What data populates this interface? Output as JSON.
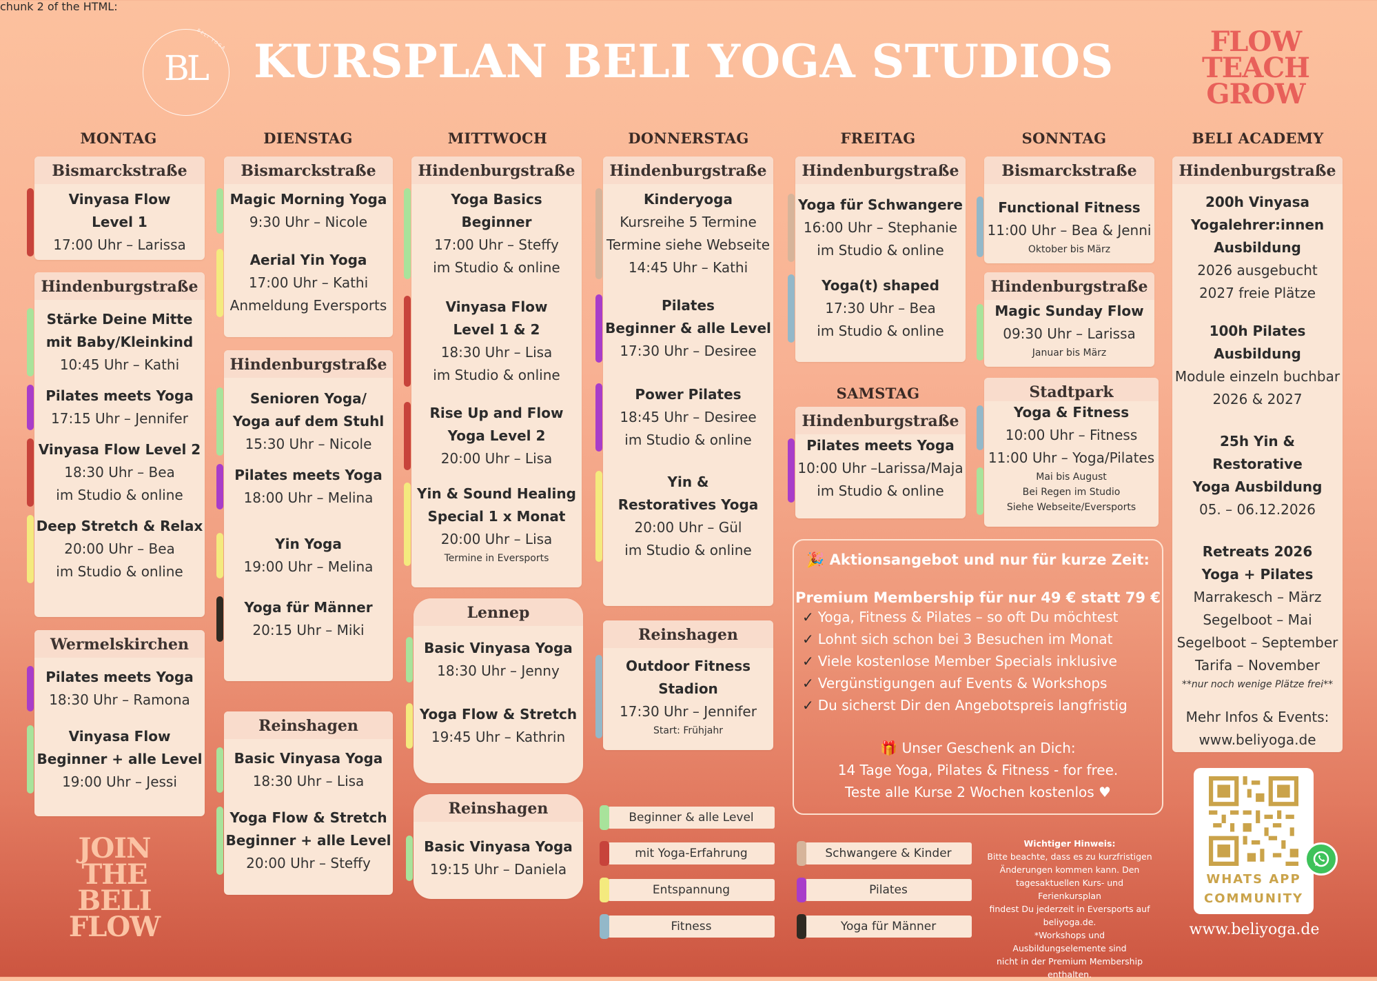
{
  "header": {
    "logo_text": "BL",
    "logo_ring_text": "BELI YOGA",
    "title": "KURSPLAN BELI YOGA STUDIOS",
    "slogan": [
      "FLOW",
      "TEACH",
      "GROW"
    ]
  },
  "days": {
    "montag": "MONTAG",
    "dienstag": "DIENSTAG",
    "mittwoch": "MITTWOCH",
    "donnerstag": "DONNERSTAG",
    "freitag": "FREITAG",
    "samstag": "SAMSTAG",
    "sonntag": "SONNTAG",
    "academy": "BELI ACADEMY"
  },
  "montag": {
    "bismarck": {
      "location": "Bismarckstraße",
      "classes": [
        {
          "color": "red",
          "name": [
            "Vinyasa Flow",
            "Level 1"
          ],
          "time": "17:00 Uhr – Larissa"
        }
      ]
    },
    "hindenburg": {
      "location": "Hindenburgstraße",
      "classes": [
        {
          "color": "green",
          "name": [
            "Stärke Deine Mitte",
            "mit Baby/Kleinkind"
          ],
          "time": "10:45 Uhr – Kathi"
        },
        {
          "color": "purple",
          "name": [
            "Pilates meets Yoga"
          ],
          "time": "17:15 Uhr – Jennifer"
        },
        {
          "color": "red",
          "name": [
            "Vinyasa Flow Level 2"
          ],
          "time": "18:30 Uhr – Bea",
          "extra": "im Studio & online"
        },
        {
          "color": "yellow",
          "name": [
            "Deep Stretch & Relax"
          ],
          "time": "20:00 Uhr – Bea",
          "extra": "im Studio & online"
        }
      ]
    },
    "wermelskirchen": {
      "location": "Wermelskirchen",
      "classes": [
        {
          "color": "purple",
          "name": [
            "Pilates meets Yoga"
          ],
          "time": "18:30 Uhr – Ramona"
        },
        {
          "color": "green",
          "name": [
            "Vinyasa Flow",
            "Beginner + alle Level"
          ],
          "time": "19:00 Uhr – Jessi"
        }
      ]
    }
  },
  "dienstag": {
    "bismarck": {
      "location": "Bismarckstraße",
      "classes": [
        {
          "color": "green",
          "name": [
            "Magic Morning Yoga"
          ],
          "time": "9:30 Uhr – Nicole"
        },
        {
          "color": "yellow",
          "name": [
            "Aerial Yin Yoga"
          ],
          "time": "17:00 Uhr – Kathi",
          "extra": "Anmeldung Eversports"
        }
      ]
    },
    "hindenburg": {
      "location": "Hindenburgstraße",
      "classes": [
        {
          "color": "green",
          "name": [
            "Senioren Yoga/",
            "Yoga auf dem Stuhl"
          ],
          "time": "15:30 Uhr – Nicole"
        },
        {
          "color": "purple",
          "name": [
            "Pilates meets Yoga"
          ],
          "time": "18:00  Uhr – Melina"
        },
        {
          "color": "yellow",
          "name": [
            "Yin Yoga"
          ],
          "time": "19:00 Uhr – Melina"
        },
        {
          "color": "black",
          "name": [
            "Yoga für Männer"
          ],
          "time": "20:15 Uhr – Miki"
        }
      ]
    },
    "reinshagen": {
      "location": "Reinshagen",
      "classes": [
        {
          "color": "green",
          "name": [
            "Basic Vinyasa Yoga"
          ],
          "time": "18:30 Uhr – Lisa"
        },
        {
          "color": "green",
          "name": [
            "Yoga Flow & Stretch",
            "Beginner + alle Level"
          ],
          "time": "20:00 Uhr – Steffy"
        }
      ]
    }
  },
  "mittwoch": {
    "hindenburg": {
      "location": "Hindenburgstraße",
      "classes": [
        {
          "color": "green",
          "name": [
            "Yoga Basics",
            "Beginner"
          ],
          "time": "17:00 Uhr – Steffy",
          "extra": "im Studio & online"
        },
        {
          "color": "red",
          "name": [
            "Vinyasa Flow",
            "Level 1 & 2"
          ],
          "time": "18:30 Uhr – Lisa",
          "extra": "im Studio & online"
        },
        {
          "color": "red",
          "name": [
            "Rise Up and Flow",
            "Yoga Level 2"
          ],
          "time": "20:00 Uhr – Lisa"
        },
        {
          "color": "yellow",
          "name": [
            "Yin & Sound Healing",
            "Special 1 x Monat"
          ],
          "time": "20:00 Uhr – Lisa",
          "small": "Termine in Eversports"
        }
      ]
    },
    "lennep": {
      "location": "Lennep",
      "classes": [
        {
          "color": "green",
          "name": [
            "Basic Vinyasa Yoga"
          ],
          "time": "18:30 Uhr – Jenny"
        },
        {
          "color": "yellow",
          "name": [
            "Yoga Flow & Stretch"
          ],
          "time": "19:45 Uhr – Kathrin"
        }
      ]
    },
    "reinshagen": {
      "location": "Reinshagen",
      "classes": [
        {
          "color": "green",
          "name": [
            "Basic Vinyasa Yoga"
          ],
          "time": "19:15 Uhr – Daniela"
        }
      ]
    }
  },
  "donnerstag": {
    "hindenburg": {
      "location": "Hindenburgstraße",
      "classes": [
        {
          "color": "tan",
          "name": [
            "Kinderyoga"
          ],
          "time": "Kursreihe 5 Termine",
          "extra": "Termine siehe Webseite",
          "extra2": "14:45 Uhr – Kathi"
        },
        {
          "color": "purple",
          "name": [
            "Pilates",
            "Beginner & alle Level"
          ],
          "time": "17:30 Uhr – Desiree"
        },
        {
          "color": "purple",
          "name": [
            "Power Pilates"
          ],
          "time": "18:45 Uhr – Desiree",
          "extra": "im Studio & online"
        },
        {
          "color": "yellow",
          "name": [
            "Yin &",
            "Restoratives Yoga"
          ],
          "time": "20:00 Uhr – Gül",
          "extra": "im Studio & online"
        }
      ]
    },
    "reinshagen": {
      "location": "Reinshagen",
      "classes": [
        {
          "color": "blue",
          "name": [
            "Outdoor Fitness",
            "Stadion"
          ],
          "time": "17:30 Uhr – Jennifer",
          "small": "Start: Frühjahr"
        }
      ]
    }
  },
  "freitag": {
    "hindenburg": {
      "location": "Hindenburgstraße",
      "classes": [
        {
          "color": "tan",
          "name": [
            "Yoga für Schwangere"
          ],
          "time": "16:00 Uhr – Stephanie",
          "extra": "im Studio & online"
        },
        {
          "color": "blue",
          "name": [
            "Yoga(t) shaped"
          ],
          "time": "17:30 Uhr – Bea",
          "extra": "im Studio & online"
        }
      ]
    }
  },
  "samstag": {
    "hindenburg": {
      "location": "Hindenburgstraße",
      "classes": [
        {
          "color": "purple",
          "name": [
            "Pilates meets Yoga"
          ],
          "time": "10:00 Uhr –Larissa/Maja",
          "extra": "im Studio & online"
        }
      ]
    }
  },
  "sonntag": {
    "bismarck": {
      "location": "Bismarckstraße",
      "classes": [
        {
          "color": "blue",
          "name": [
            "Functional Fitness"
          ],
          "time": "11:00 Uhr – Bea & Jenni",
          "small": "Oktober bis März"
        }
      ]
    },
    "hindenburg": {
      "location": "Hindenburgstraße",
      "classes": [
        {
          "color": "green",
          "name": [
            "Magic Sunday Flow"
          ],
          "time": "09:30 Uhr – Larissa",
          "small": "Januar bis März"
        }
      ]
    },
    "stadtpark": {
      "location": "Stadtpark",
      "classes": [
        {
          "color": "blue",
          "name": [
            "Yoga & Fitness"
          ],
          "time": "10:00 Uhr – Fitness",
          "extra": "11:00 Uhr – Yoga/Pilates",
          "small": "Mai bis August",
          "small2": "Bei Regen im Studio",
          "small3": "Siehe Webseite/Eversports"
        }
      ]
    }
  },
  "academy": {
    "location": "Hindenburgstraße",
    "items": [
      {
        "name": [
          "200h Vinyasa",
          "Yogalehrer:innen",
          "Ausbildung"
        ],
        "lines": [
          "2026 ausgebucht",
          "2027 freie Plätze"
        ]
      },
      {
        "name": [
          "100h Pilates",
          "Ausbildung"
        ],
        "lines": [
          "Module einzeln buchbar",
          "2026 & 2027"
        ]
      },
      {
        "name": [
          "25h Yin & Restorative",
          "Yoga Ausbildung"
        ],
        "lines": [
          "05. – 06.12.2026"
        ]
      },
      {
        "name": [
          "Retreats 2026",
          "Yoga + Pilates"
        ],
        "lines": [
          "Marrakesch – März",
          "Segelboot – Mai",
          "Segelboot – September",
          "Tarifa – November"
        ],
        "note": "**nur noch wenige Plätze frei**"
      }
    ],
    "more_title": "Mehr Infos & Events:",
    "more_url": "www.beliyoga.de"
  },
  "promo": {
    "title": "🎉 Aktionsangebot und nur für kurze Zeit:",
    "premium": "Premium Membership für nur 49 € statt 79 €",
    "checks": [
      "Yoga, Fitness & Pilates – so oft Du möchtest",
      "Lohnt sich schon bei 3 Besuchen im Monat",
      "Viele kostenlose Member Specials inklusive",
      "Vergünstigungen auf Events & Workshops",
      "Du sicherst Dir den Angebotspreis langfristig"
    ],
    "gift1": "🎁 Unser Geschenk an Dich:",
    "gift2": "14 Tage Yoga, Pilates & Fitness - for free.",
    "gift3": "Teste alle Kurse 2 Wochen kostenlos ♥"
  },
  "legend": [
    {
      "label": "Beginner & alle Level",
      "color": "#a8e39b"
    },
    {
      "label": "mit Yoga-Erfahrung",
      "color": "#c7433b"
    },
    {
      "label": "Entspannung",
      "color": "#f4ea7e"
    },
    {
      "label": "Fitness",
      "color": "#93b8c9"
    },
    {
      "label": "Schwangere & Kinder",
      "color": "#d6b49a"
    },
    {
      "label": "Pilates",
      "color": "#a83dc9"
    },
    {
      "label": "Yoga für Männer",
      "color": "#2f2a22"
    }
  ],
  "notice": {
    "title": "Wichtiger Hinweis:",
    "body": [
      "Bitte beachte, dass es zu kurzfristigen",
      "Änderungen kommen kann. Den",
      "tagesaktuellen Kurs- und Ferienkursplan",
      "findest Du jederzeit in Eversports auf",
      "beliyoga.de.",
      "*Workshops und Ausbildungselemente sind",
      "nicht in der Premium Membership enthalten."
    ]
  },
  "join": [
    "JOIN",
    "THE",
    "BELI",
    "FLOW"
  ],
  "whatsapp": {
    "line1": "WHATS APP",
    "line2": "COMMUNITY"
  },
  "footer_url": "www.beliyoga.de"
}
